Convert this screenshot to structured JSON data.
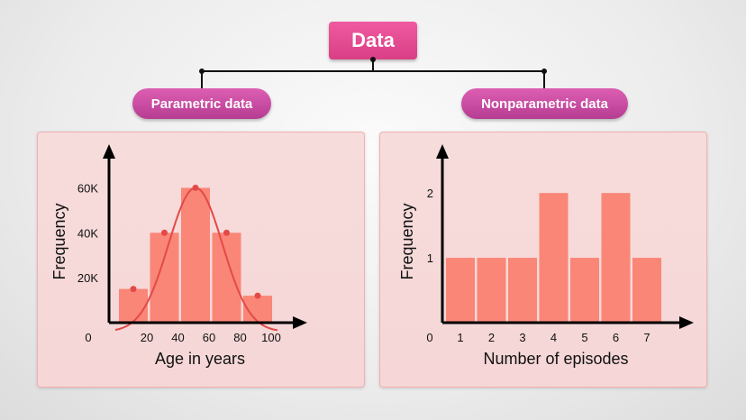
{
  "root": {
    "label": "Data"
  },
  "branches": {
    "left": "Parametric data",
    "right": "Nonparametric data"
  },
  "colors": {
    "bar": "#fa8677",
    "curve": "#e34a47",
    "root": "#e44c93",
    "pill": "#c74aa2",
    "panel": "#f7dada"
  },
  "chart_data": [
    {
      "type": "bar",
      "categories": [
        "20",
        "40",
        "60",
        "80",
        "100"
      ],
      "values": [
        15000,
        40000,
        60000,
        40000,
        12000
      ],
      "origin_label": "0",
      "y_ticks": [
        "20K",
        "40K",
        "60K"
      ],
      "xlabel": "Age in years",
      "ylabel": "Frequency",
      "ylim": [
        0,
        75000
      ],
      "overlay": "normal-curve"
    },
    {
      "type": "bar",
      "categories": [
        "1",
        "2",
        "3",
        "4",
        "5",
        "6",
        "7"
      ],
      "values": [
        1,
        1,
        1,
        2,
        1,
        2,
        1
      ],
      "origin_label": "0",
      "y_ticks": [
        "1",
        "2"
      ],
      "xlabel": "Number of episodes",
      "ylabel": "Frequency",
      "ylim": [
        0,
        2.6
      ]
    }
  ]
}
